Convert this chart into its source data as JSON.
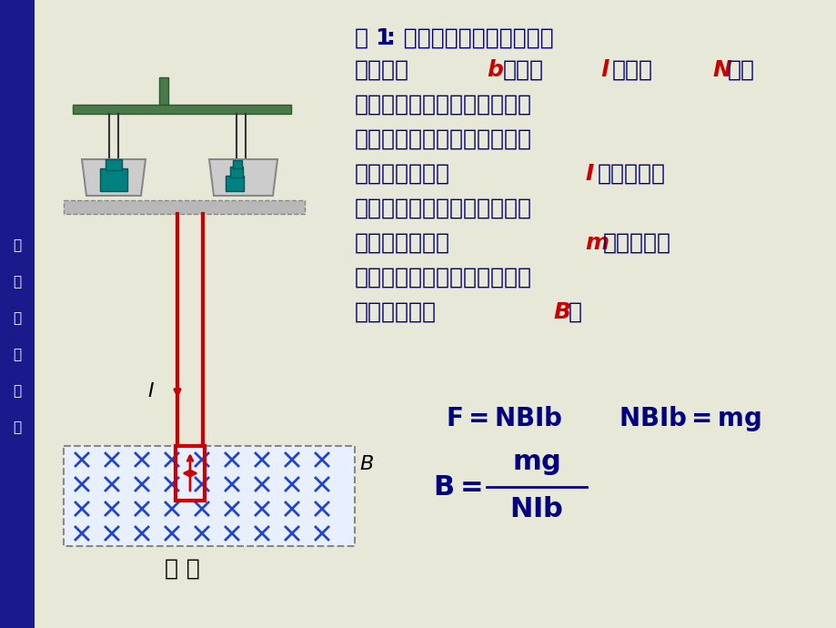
{
  "bg_color": "#e8e8d8",
  "sidebar_color": "#1a1a8c",
  "sidebar_text": [
    "磁",
    "秤",
    "测",
    "量",
    "原",
    "理"
  ],
  "title_text": "例1: 磁秤：如图所示，矩形线",
  "body_text_lines": [
    "圈的宽为b，长为l，共有N匝，",
    "下端放在待测的均匀磁场中，",
    "其平面与磁感应强度垂直，当",
    "线圈中通有电流I时，线圈受",
    "到一向上的作用力，天平失去",
    "平衡，调节砝码m使两臂达到",
    "平衡。用上述数据求待测磁场",
    "的磁感应强度B。"
  ],
  "formula1": "F = NBIb",
  "formula2": "NBIb = mg",
  "formula3_top": "mg",
  "formula3_bot": "NIb",
  "formula3_prefix": "B = ",
  "caption": "磁 秤",
  "current_label": "I",
  "B_label": "B",
  "red_color": "#cc0000",
  "blue_color": "#1a1aaa",
  "dark_blue": "#000080",
  "teal_color": "#008080",
  "formula_color": "#000080"
}
